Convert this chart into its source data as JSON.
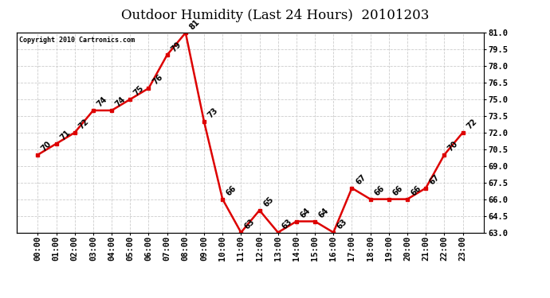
{
  "title": "Outdoor Humidity (Last 24 Hours)  20101203",
  "copyright": "Copyright 2010 Cartronics.com",
  "hours": [
    "00:00",
    "01:00",
    "02:00",
    "03:00",
    "04:00",
    "05:00",
    "06:00",
    "07:00",
    "08:00",
    "09:00",
    "10:00",
    "11:00",
    "12:00",
    "13:00",
    "14:00",
    "15:00",
    "16:00",
    "17:00",
    "18:00",
    "19:00",
    "20:00",
    "21:00",
    "22:00",
    "23:00"
  ],
  "values": [
    70,
    71,
    72,
    74,
    74,
    75,
    76,
    79,
    81,
    73,
    66,
    63,
    65,
    63,
    64,
    64,
    63,
    67,
    66,
    66,
    66,
    67,
    70,
    72
  ],
  "line_color": "#dd0000",
  "marker_color": "#dd0000",
  "bg_color": "#ffffff",
  "grid_color": "#cccccc",
  "ylim": [
    63.0,
    81.0
  ],
  "yticks": [
    63.0,
    64.5,
    66.0,
    67.5,
    69.0,
    70.5,
    72.0,
    73.5,
    75.0,
    76.5,
    78.0,
    79.5,
    81.0
  ],
  "title_fontsize": 12,
  "annotation_fontsize": 7,
  "tick_fontsize": 7.5,
  "copyright_fontsize": 6
}
